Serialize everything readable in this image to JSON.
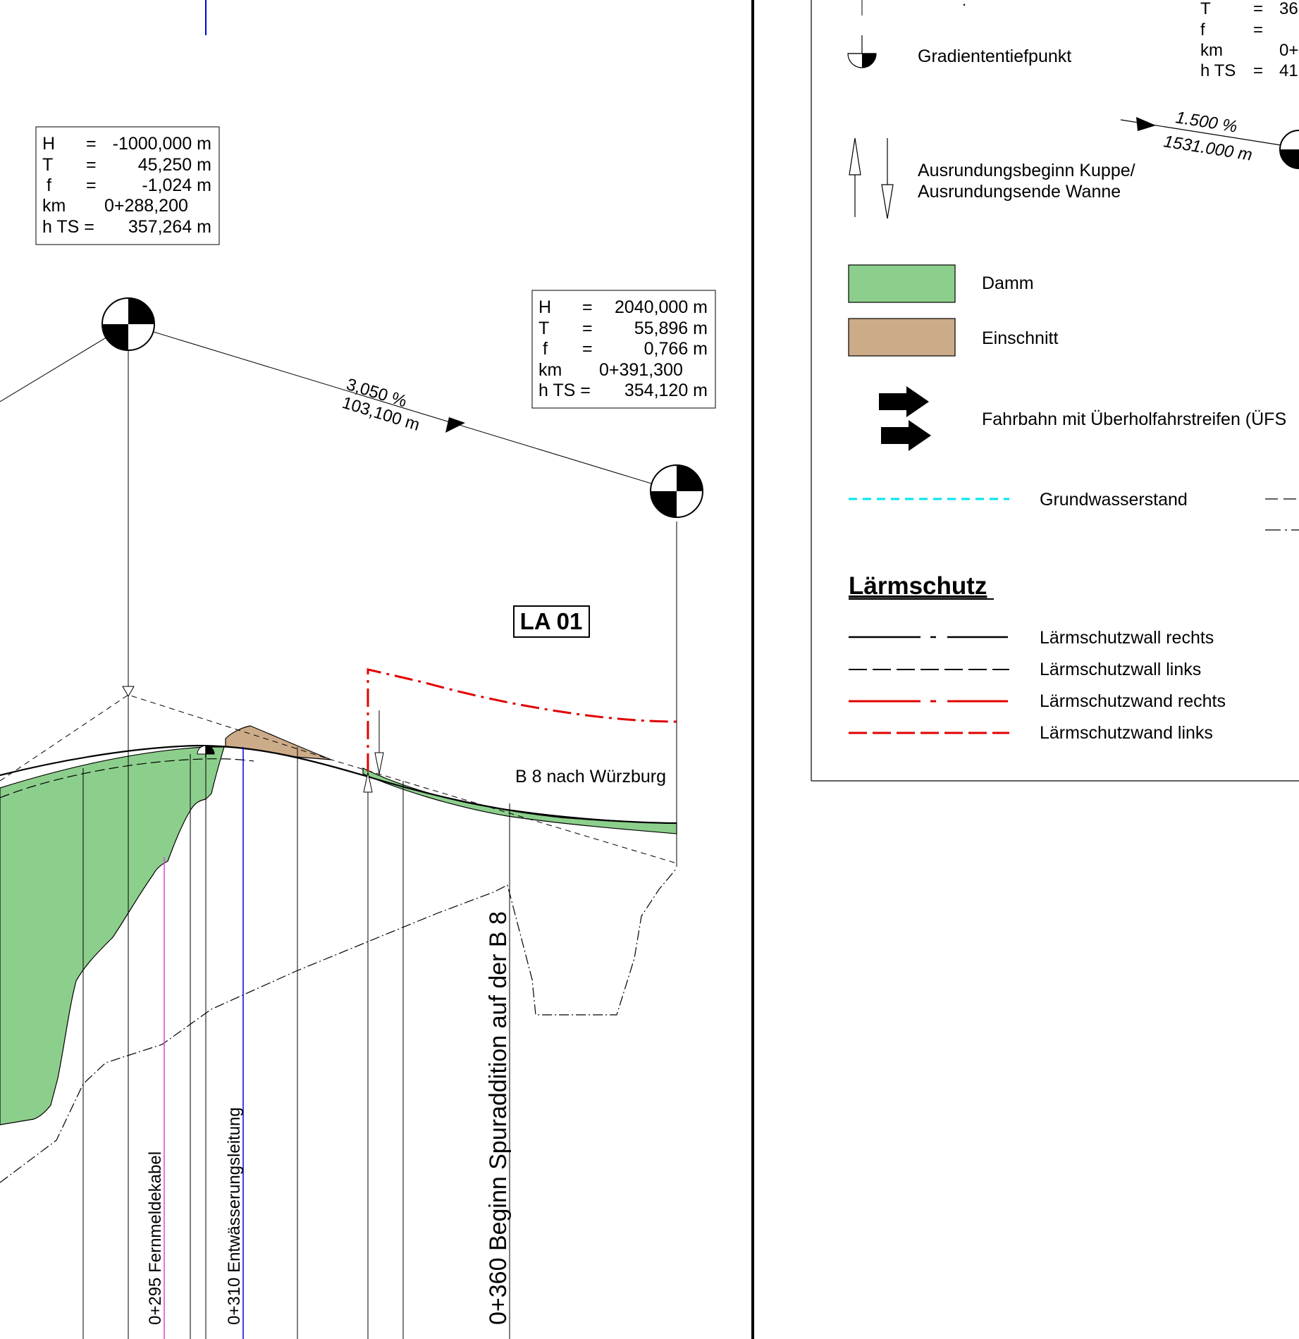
{
  "colors": {
    "damm": "#8ccf8c",
    "einschnitt": "#ccab88",
    "laermschutzwand": "#e10000",
    "grundwasser": "#00e5ee",
    "pipe_blue": "#0000dd",
    "cable_magenta": "#e040e0"
  },
  "profile": {
    "box1": {
      "h_label": "H",
      "h_eq": "=",
      "h_val": "-1000,000 m",
      "t_label": "T",
      "t_eq": "=",
      "t_val": "45,250 m",
      "f_label": "f",
      "f_eq": "=",
      "f_val": "-1,024 m",
      "km_label": "km",
      "km_val": "0+288,200",
      "hts_label": "h TS =",
      "hts_val": "357,264 m"
    },
    "box2": {
      "h_label": "H",
      "h_eq": "=",
      "h_val": "2040,000 m",
      "t_label": "T",
      "t_eq": "=",
      "t_val": "55,896 m",
      "f_label": "f",
      "f_eq": "=",
      "f_val": "0,766 m",
      "km_label": "km",
      "km_val": "0+391,300",
      "hts_label": "h TS =",
      "hts_val": "354,120 m"
    },
    "gradient_pct": "3,050 %",
    "gradient_len": "103,100 m",
    "section_label": "LA 01",
    "road_label": "B 8 nach Würzburg",
    "station_295": "0+295  Fernmeldekabel",
    "station_310": "0+310  Entwässerungsleitung",
    "station_360": "0+360  Beginn Spuraddition auf der B 8"
  },
  "legend": {
    "top_partial": {
      "t_label": "T",
      "t_eq": "=",
      "t_val": "36",
      "f_label": "f",
      "f_eq": "=",
      "km_label": "km",
      "km_val": "0+",
      "hts_label": "h TS",
      "hts_eq": "=",
      "hts_val": "41"
    },
    "gradientHighpoint_note": "",
    "gradient_tiefpunkt": "Gradiententiefpunkt",
    "example_pct": "1.500 %",
    "example_len": "1531.000 m",
    "ausrundung_line1": "Ausrundungsbeginn Kuppe/",
    "ausrundung_line2": "Ausrundungsende Wanne",
    "damm": "Damm",
    "einschnitt": "Einschnitt",
    "uefs": "Fahrbahn mit Überholfahrstreifen (ÜFS",
    "grundwasser": "Grundwasserstand",
    "laermschutz_heading": "Lärmschutz",
    "lsw_rechts": "Lärmschutzwall rechts",
    "lsw_links": "Lärmschutzwall links",
    "lswand_rechts": "Lärmschutzwand rechts",
    "lswand_links": "Lärmschutzwand links"
  }
}
